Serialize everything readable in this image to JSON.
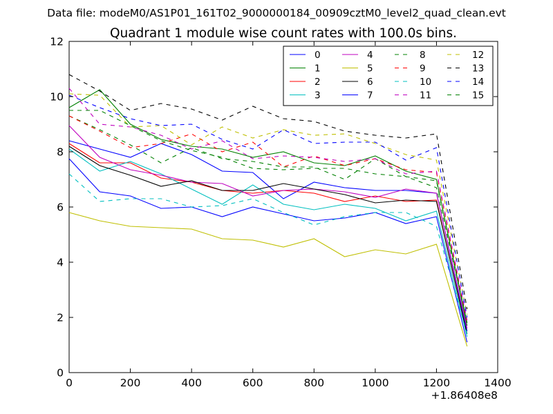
{
  "figure": {
    "suptitle": "Data file: modeM0/AS1P01_161T02_9000000184_00909cztM0_level2_quad_clean.evt",
    "title": "Quadrant 1 module wise count rates with 100.0s bins.",
    "x_offset_label": "+1.86408e8"
  },
  "chart_data": {
    "type": "line",
    "title": "Quadrant 1 module wise count rates with 100.0s bins.",
    "xlabel": "",
    "ylabel": "",
    "xlim": [
      0,
      1400
    ],
    "ylim": [
      0,
      12
    ],
    "x_ticks": [
      0,
      200,
      400,
      600,
      800,
      1000,
      1200,
      1400
    ],
    "y_ticks": [
      0,
      2,
      4,
      6,
      8,
      10,
      12
    ],
    "x_tick_labels": [
      "0",
      "200",
      "400",
      "600",
      "800",
      "1000",
      "1200",
      "1400"
    ],
    "y_tick_labels": [
      "0",
      "2",
      "4",
      "6",
      "8",
      "10",
      "12"
    ],
    "grid": false,
    "legend_position": "top-right",
    "legend_columns": 4,
    "x": [
      0,
      100,
      200,
      300,
      400,
      500,
      600,
      700,
      800,
      900,
      1000,
      1100,
      1200,
      1300
    ],
    "series": [
      {
        "name": "0",
        "color": "#0000ff",
        "dash": "solid",
        "values": [
          8.4,
          8.1,
          7.8,
          8.3,
          7.9,
          7.3,
          7.25,
          6.3,
          6.9,
          6.7,
          6.6,
          6.6,
          6.5,
          1.5
        ]
      },
      {
        "name": "1",
        "color": "#008000",
        "dash": "solid",
        "values": [
          9.6,
          10.25,
          9.0,
          8.45,
          8.2,
          8.1,
          7.8,
          8.0,
          7.6,
          7.5,
          7.85,
          7.3,
          7.0,
          1.7
        ]
      },
      {
        "name": "2",
        "color": "#ff0000",
        "dash": "solid",
        "values": [
          8.3,
          7.6,
          7.6,
          7.05,
          6.9,
          6.6,
          6.5,
          6.6,
          6.5,
          6.2,
          6.4,
          6.2,
          6.25,
          1.4
        ]
      },
      {
        "name": "3",
        "color": "#00bfbf",
        "dash": "solid",
        "values": [
          8.1,
          7.3,
          7.65,
          7.2,
          6.65,
          6.1,
          6.8,
          6.1,
          5.9,
          6.1,
          5.95,
          5.5,
          5.85,
          1.3
        ]
      },
      {
        "name": "4",
        "color": "#bf00bf",
        "dash": "solid",
        "values": [
          8.95,
          7.8,
          7.35,
          7.15,
          6.9,
          6.85,
          6.4,
          6.6,
          6.65,
          6.55,
          6.35,
          6.65,
          6.5,
          1.6
        ]
      },
      {
        "name": "5",
        "color": "#bfbf00",
        "dash": "solid",
        "values": [
          5.8,
          5.5,
          5.3,
          5.25,
          5.2,
          4.85,
          4.8,
          4.55,
          4.85,
          4.2,
          4.45,
          4.3,
          4.65,
          0.95
        ]
      },
      {
        "name": "6",
        "color": "#000000",
        "dash": "solid",
        "values": [
          8.2,
          7.5,
          7.15,
          6.75,
          6.95,
          6.6,
          6.6,
          6.85,
          6.65,
          6.45,
          6.15,
          6.25,
          6.2,
          1.4
        ]
      },
      {
        "name": "7",
        "color": "#0000ff",
        "dash": "solid",
        "values": [
          7.75,
          6.55,
          6.4,
          5.95,
          6.0,
          5.65,
          6.0,
          5.75,
          5.5,
          5.6,
          5.8,
          5.4,
          5.65,
          1.1
        ]
      },
      {
        "name": "8",
        "color": "#008000",
        "dash": "dashed",
        "values": [
          9.3,
          8.8,
          8.25,
          7.6,
          8.15,
          7.75,
          7.65,
          7.45,
          7.45,
          7.0,
          7.75,
          7.1,
          6.7,
          1.8
        ]
      },
      {
        "name": "9",
        "color": "#ff0000",
        "dash": "dashed",
        "values": [
          9.3,
          8.75,
          8.15,
          8.3,
          8.65,
          8.0,
          8.35,
          7.45,
          7.85,
          7.5,
          7.75,
          7.35,
          7.25,
          1.8
        ]
      },
      {
        "name": "10",
        "color": "#00bfbf",
        "dash": "dashed",
        "values": [
          7.2,
          6.2,
          6.3,
          6.3,
          6.0,
          6.05,
          6.3,
          5.8,
          5.35,
          5.65,
          5.8,
          5.8,
          5.3,
          1.4
        ]
      },
      {
        "name": "11",
        "color": "#bf00bf",
        "dash": "dashed",
        "values": [
          10.3,
          9.0,
          8.9,
          8.6,
          8.1,
          8.4,
          7.75,
          7.85,
          7.8,
          7.65,
          7.75,
          7.2,
          7.3,
          1.9
        ]
      },
      {
        "name": "12",
        "color": "#bfbf00",
        "dash": "dashed",
        "values": [
          10.1,
          10.05,
          8.9,
          8.95,
          8.25,
          8.9,
          8.5,
          8.8,
          8.6,
          8.65,
          8.3,
          7.9,
          7.7,
          2.1
        ]
      },
      {
        "name": "13",
        "color": "#000000",
        "dash": "dashed",
        "values": [
          10.8,
          10.2,
          9.5,
          9.75,
          9.55,
          9.15,
          9.65,
          9.2,
          9.1,
          8.75,
          8.6,
          8.5,
          8.65,
          2.3
        ]
      },
      {
        "name": "14",
        "color": "#0000ff",
        "dash": "dashed",
        "values": [
          10.05,
          9.6,
          9.2,
          8.95,
          9.0,
          8.45,
          8.1,
          8.8,
          8.3,
          8.35,
          8.35,
          7.7,
          8.15,
          2.0
        ]
      },
      {
        "name": "15",
        "color": "#008000",
        "dash": "dashed",
        "values": [
          9.5,
          9.5,
          8.95,
          8.4,
          8.05,
          7.8,
          7.4,
          7.35,
          7.4,
          7.4,
          7.2,
          7.1,
          6.95,
          1.8
        ]
      }
    ]
  }
}
